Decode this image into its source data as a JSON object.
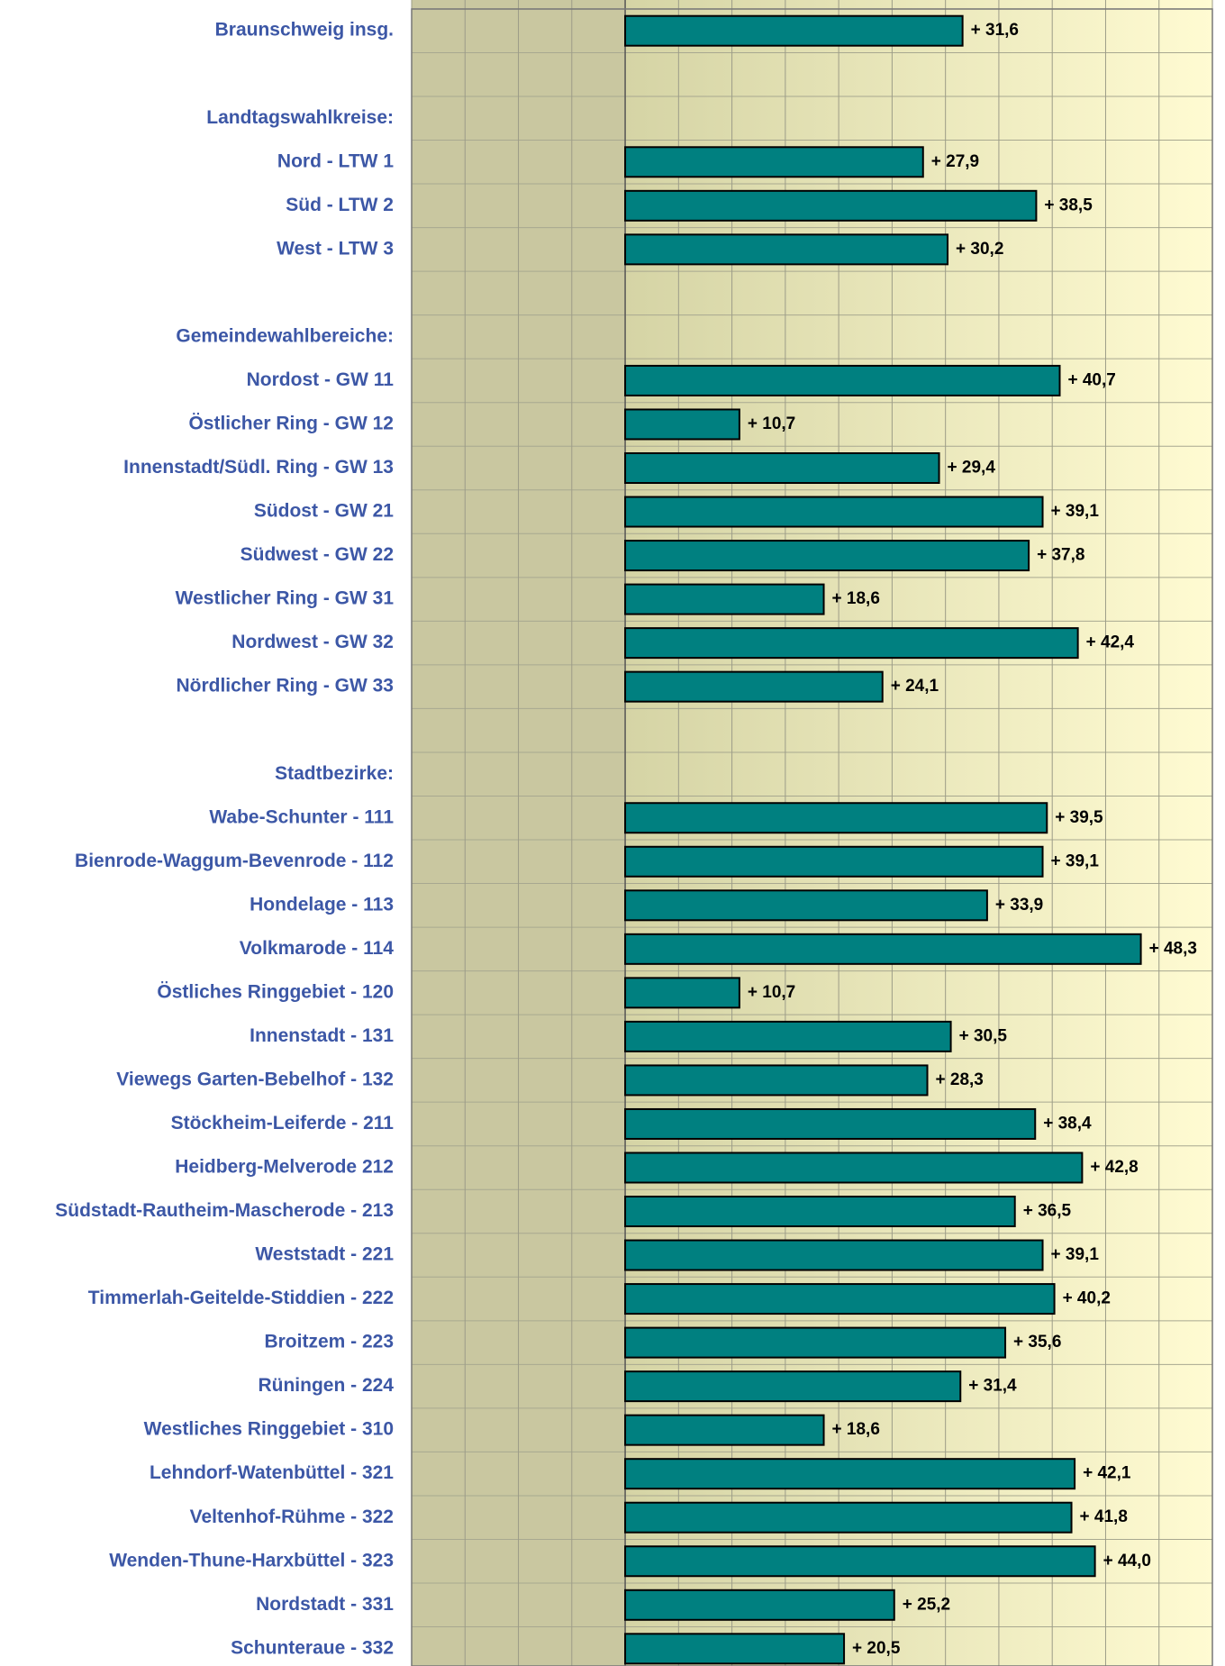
{
  "chart_data": {
    "type": "bar",
    "orientation": "horizontal",
    "categories": [
      "Braunschweig insg.",
      null,
      "Landtagswahlkreise:",
      "Nord - LTW 1",
      "Süd - LTW 2",
      "West - LTW 3",
      null,
      "Gemeindewahlbereiche:",
      "Nordost - GW 11",
      "Östlicher Ring - GW 12",
      "Innenstadt/Südl. Ring - GW 13",
      "Südost - GW 21",
      "Südwest - GW 22",
      "Westlicher Ring - GW 31",
      "Nordwest - GW 32",
      "Nördlicher Ring - GW 33",
      null,
      "Stadtbezirke:",
      "Wabe-Schunter - 111",
      "Bienrode-Waggum-Bevenrode - 112",
      "Hondelage - 113",
      "Volkmarode - 114",
      "Östliches Ringgebiet - 120",
      "Innenstadt - 131",
      "Viewegs Garten-Bebelhof - 132",
      "Stöckheim-Leiferde - 211",
      "Heidberg-Melverode 212",
      "Südstadt-Rautheim-Mascherode - 213",
      "Weststadt - 221",
      "Timmerlah-Geitelde-Stiddien - 222",
      "Broitzem - 223",
      "Rüningen - 224",
      "Westliches Ringgebiet - 310",
      "Lehndorf-Watenbüttel - 321",
      "Veltenhof-Rühme - 322",
      "Wenden-Thune-Harxbüttel - 323",
      "Nordstadt - 331",
      "Schunteraue - 332"
    ],
    "values": [
      31.6,
      null,
      null,
      27.9,
      38.5,
      30.2,
      null,
      null,
      40.7,
      10.7,
      29.4,
      39.1,
      37.8,
      18.6,
      42.4,
      24.1,
      null,
      null,
      39.5,
      39.1,
      33.9,
      48.3,
      10.7,
      30.5,
      28.3,
      38.4,
      42.8,
      36.5,
      39.1,
      40.2,
      35.6,
      31.4,
      18.6,
      42.1,
      41.8,
      44.0,
      25.2,
      20.5
    ],
    "value_labels": [
      "+ 31,6",
      null,
      null,
      "+ 27,9",
      "+ 38,5",
      "+ 30,2",
      null,
      null,
      "+ 40,7",
      "+ 10,7",
      "+ 29,4",
      "+ 39,1",
      "+ 37,8",
      "+ 18,6",
      "+ 42,4",
      "+ 24,1",
      null,
      null,
      "+ 39,5",
      "+ 39,1",
      "+ 33,9",
      "+ 48,3",
      "+ 10,7",
      "+ 30,5",
      "+ 28,3",
      "+ 38,4",
      "+ 42,8",
      "+ 36,5",
      "+ 39,1",
      "+ 40,2",
      "+ 35,6",
      "+ 31,4",
      "+ 18,6",
      "+ 42,1",
      "+ 41,8",
      "+ 44,0",
      "+ 25,2",
      "+ 20,5"
    ],
    "color": "#008080",
    "xlim": [
      -20,
      55
    ],
    "xticks": [
      -20,
      -15,
      -10,
      -5,
      0,
      5,
      10,
      15,
      20,
      25,
      30,
      35,
      40,
      45,
      50,
      55
    ],
    "grid": true
  }
}
